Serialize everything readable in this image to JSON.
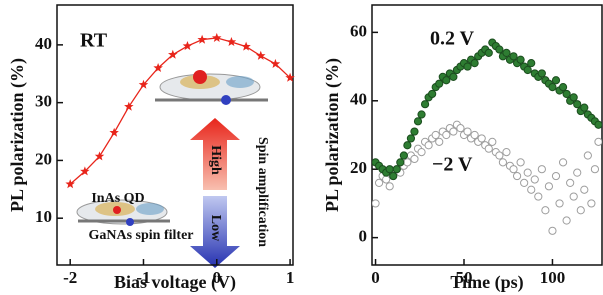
{
  "chart_data": [
    {
      "type": "line",
      "marker": "star",
      "color": "#e8251b",
      "x_label": "Bias voltage (V)",
      "y_label": "PL polarization (%)",
      "x": [
        -2,
        -1.8,
        -1.6,
        -1.4,
        -1.2,
        -1,
        -0.8,
        -0.6,
        -0.4,
        -0.2,
        0,
        0.2,
        0.4,
        0.6,
        0.8,
        1
      ],
      "values": [
        15.9,
        18.1,
        20.7,
        24.8,
        29.3,
        33.1,
        36,
        38.3,
        39.8,
        40.9,
        41.2,
        40.5,
        39.7,
        38.1,
        36.7,
        34.3
      ],
      "xlim": [
        -2.18,
        1.04
      ],
      "xticks": [
        -2,
        -1,
        0,
        1
      ],
      "ylim": [
        1.9,
        46.9
      ],
      "yticks": [
        10,
        20,
        30,
        40
      ],
      "annotations": [
        "RT",
        "InAs QD",
        "GaNAs spin filter",
        "Spin amplification",
        "High",
        "Low"
      ]
    },
    {
      "type": "scatter",
      "x_label": "Time (ps)",
      "y_label": "PL polarization (%)",
      "x": [
        0,
        2,
        4,
        6,
        8,
        10,
        12,
        14,
        16,
        18,
        20,
        22,
        24,
        26,
        28,
        30,
        32,
        34,
        36,
        38,
        40,
        42,
        44,
        46,
        48,
        50,
        52,
        54,
        56,
        58,
        60,
        62,
        64,
        66,
        68,
        70,
        72,
        74,
        76,
        78,
        80,
        82,
        84,
        86,
        88,
        90,
        92,
        94,
        96,
        98,
        100,
        102,
        104,
        106,
        108,
        110,
        112,
        114,
        116,
        118,
        120,
        122,
        124,
        126
      ],
      "series": [
        {
          "name": "0.2 V",
          "color": "#2e7d32",
          "filled": true,
          "values": [
            22,
            21,
            20,
            19,
            20,
            18,
            20,
            22,
            24,
            27,
            29,
            31,
            34,
            36,
            39,
            41,
            42,
            44,
            45,
            47,
            46,
            48,
            47,
            49,
            50,
            51,
            50,
            52,
            51,
            53,
            54,
            55,
            54,
            57,
            56,
            55,
            53,
            54,
            52,
            53,
            51,
            52,
            50,
            49,
            51,
            48,
            47,
            48,
            46,
            45,
            44,
            46,
            43,
            44,
            42,
            40,
            41,
            39,
            37,
            38,
            36,
            35,
            34,
            33
          ]
        },
        {
          "name": "−2 V",
          "color": "#9e9e9e",
          "filled": false,
          "values": [
            10,
            16,
            18,
            17,
            15,
            18,
            20,
            19,
            21,
            22,
            24,
            23,
            26,
            25,
            28,
            27,
            29,
            30,
            28,
            31,
            30,
            32,
            31,
            33,
            32,
            30,
            31,
            29,
            30,
            28,
            29,
            27,
            26,
            28,
            25,
            24,
            22,
            25,
            21,
            20,
            18,
            22,
            16,
            19,
            14,
            17,
            12,
            20,
            8,
            15,
            2,
            18,
            10,
            22,
            5,
            16,
            12,
            19,
            8,
            14,
            24,
            10,
            20,
            28
          ]
        }
      ],
      "xlim": [
        -2,
        128
      ],
      "xticks": [
        0,
        50,
        100
      ],
      "ylim": [
        -8,
        68
      ],
      "yticks": [
        0,
        20,
        40,
        60
      ]
    }
  ]
}
